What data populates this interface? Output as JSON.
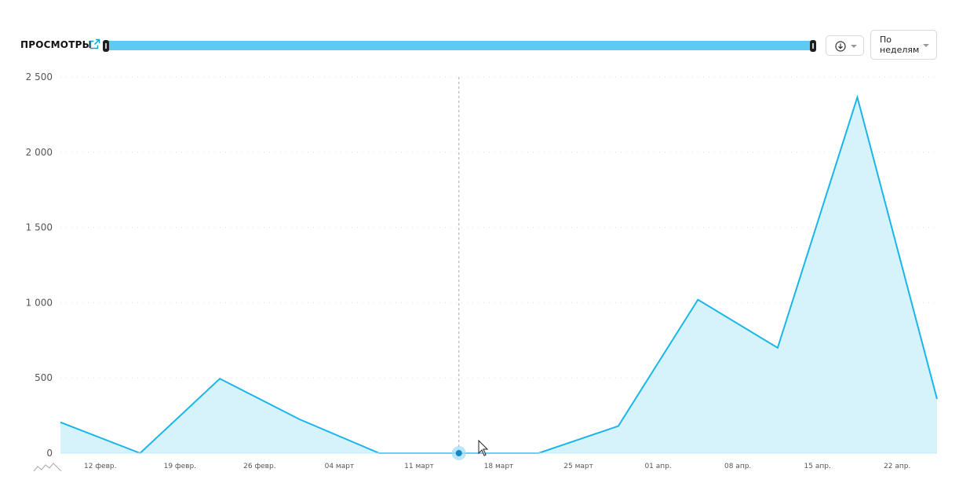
{
  "header": {
    "title": "ПРОСМОТРЫ",
    "period_label": "По неделям"
  },
  "icons": {
    "external_link": "external-link-icon",
    "download": "download-icon",
    "dropdown": "chevron-down-icon",
    "mini_chart": "mini-chart-icon"
  },
  "colors": {
    "line": "#1ab5ea",
    "area": "#d6f3fc",
    "range": "#5ec9f2",
    "grid": "#dddddd",
    "crosshair": "#aaaaaa"
  },
  "chart_data": {
    "type": "area",
    "ylim": [
      0,
      2500
    ],
    "yticks": [
      0,
      500,
      1000,
      1500,
      2000,
      2500
    ],
    "ytick_labels": [
      "0",
      "500",
      "1 000",
      "1 500",
      "2 000",
      "2 500"
    ],
    "x_labels": [
      "12 февр.",
      "19 февр.",
      "26 февр.",
      "04 март",
      "11 март",
      "18 март",
      "25 март",
      "01 апр.",
      "08 апр.",
      "15 апр.",
      "22 апр."
    ],
    "series": [
      {
        "values": [
          205,
          0,
          495,
          225,
          0,
          0,
          0,
          180,
          1020,
          700,
          2365,
          360
        ]
      }
    ],
    "grid": true,
    "hover_index": 5
  }
}
